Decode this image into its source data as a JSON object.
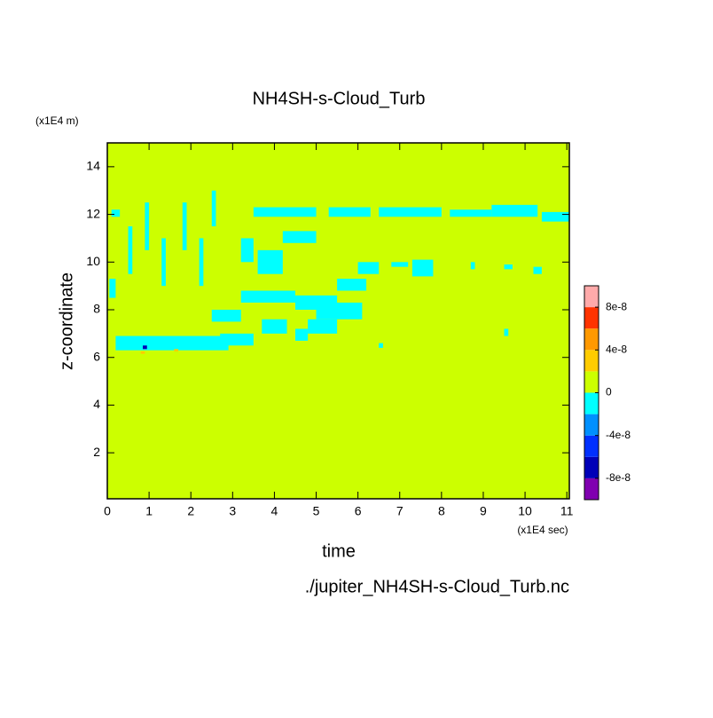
{
  "chart_data": {
    "type": "contour",
    "title": "NH4SH-s-Cloud_Turb",
    "x_label": "time",
    "x_unit": "(x1E4 sec)",
    "y_label": "z-coordinate",
    "y_unit": "(x1E4 m)",
    "source": "./jupiter_NH4SH-s-Cloud_Turb.nc",
    "xlim": [
      0,
      11.06
    ],
    "ylim": [
      0.07,
      15
    ],
    "xticks": [
      0,
      1,
      2,
      3,
      4,
      5,
      6,
      7,
      8,
      9,
      10,
      11
    ],
    "yticks": [
      2,
      4,
      6,
      8,
      10,
      12,
      14
    ],
    "levels": [
      -1e-07,
      -8e-08,
      -6e-08,
      -4e-08,
      -2e-08,
      0,
      2e-08,
      4e-08,
      6e-08,
      8e-08,
      1e-07
    ],
    "colors": [
      "#8000b0",
      "#0000b8",
      "#0030ff",
      "#0090ff",
      "#00ffff",
      "#ccff00",
      "#ffcc00",
      "#ff9900",
      "#ff3300",
      "#ffaaaa"
    ],
    "colorbar_ticks": [
      -8e-08,
      -4e-08,
      0,
      4e-08,
      8e-08
    ],
    "background_value": 1e-09,
    "regions": [
      {
        "x": [
          0.2,
          2.9
        ],
        "y": [
          6.3,
          6.9
        ],
        "value": -1e-08
      },
      {
        "x": [
          2.7,
          3.5
        ],
        "y": [
          6.5,
          7.0
        ],
        "value": -1e-08
      },
      {
        "x": [
          0.1,
          0.3
        ],
        "y": [
          11.9,
          12.2
        ],
        "value": -1e-08
      },
      {
        "x": [
          3.5,
          5.0
        ],
        "y": [
          11.9,
          12.3
        ],
        "value": -1e-08
      },
      {
        "x": [
          5.3,
          6.3
        ],
        "y": [
          11.9,
          12.3
        ],
        "value": -1e-08
      },
      {
        "x": [
          6.5,
          8.0
        ],
        "y": [
          11.9,
          12.3
        ],
        "value": -1e-08
      },
      {
        "x": [
          8.2,
          9.2
        ],
        "y": [
          11.9,
          12.2
        ],
        "value": -1e-08
      },
      {
        "x": [
          9.2,
          10.3
        ],
        "y": [
          11.9,
          12.4
        ],
        "value": -1e-08
      },
      {
        "x": [
          10.4,
          11.06
        ],
        "y": [
          11.7,
          12.1
        ],
        "value": -1e-08
      },
      {
        "x": [
          0.5,
          0.6
        ],
        "y": [
          9.5,
          11.5
        ],
        "value": -1e-08
      },
      {
        "x": [
          0.9,
          1.0
        ],
        "y": [
          10.5,
          12.5
        ],
        "value": -1e-08
      },
      {
        "x": [
          1.3,
          1.4
        ],
        "y": [
          9.0,
          11.0
        ],
        "value": -1e-08
      },
      {
        "x": [
          1.8,
          1.9
        ],
        "y": [
          10.5,
          12.5
        ],
        "value": -1e-08
      },
      {
        "x": [
          2.2,
          2.3
        ],
        "y": [
          9.0,
          11.0
        ],
        "value": -1e-08
      },
      {
        "x": [
          2.5,
          2.6
        ],
        "y": [
          11.5,
          13.0
        ],
        "value": -1e-08
      },
      {
        "x": [
          0.05,
          0.2
        ],
        "y": [
          8.5,
          9.3
        ],
        "value": -1e-08
      },
      {
        "x": [
          3.2,
          3.5
        ],
        "y": [
          10.0,
          11.0
        ],
        "value": -1e-08
      },
      {
        "x": [
          3.6,
          4.2
        ],
        "y": [
          9.5,
          10.5
        ],
        "value": -1e-08
      },
      {
        "x": [
          4.2,
          5.0
        ],
        "y": [
          10.8,
          11.3
        ],
        "value": -1e-08
      },
      {
        "x": [
          3.2,
          4.5
        ],
        "y": [
          8.3,
          8.8
        ],
        "value": -1e-08
      },
      {
        "x": [
          4.5,
          5.5
        ],
        "y": [
          8.0,
          8.6
        ],
        "value": -1e-08
      },
      {
        "x": [
          5.0,
          6.1
        ],
        "y": [
          7.6,
          8.3
        ],
        "value": -1e-08
      },
      {
        "x": [
          5.5,
          6.2
        ],
        "y": [
          8.8,
          9.3
        ],
        "value": -1e-08
      },
      {
        "x": [
          6.0,
          6.5
        ],
        "y": [
          9.5,
          10.0
        ],
        "value": -1e-08
      },
      {
        "x": [
          3.7,
          4.3
        ],
        "y": [
          7.0,
          7.6
        ],
        "value": -1e-08
      },
      {
        "x": [
          2.5,
          3.2
        ],
        "y": [
          7.5,
          8.0
        ],
        "value": -1e-08
      },
      {
        "x": [
          4.8,
          5.5
        ],
        "y": [
          7.0,
          7.6
        ],
        "value": -1e-08
      },
      {
        "x": [
          4.5,
          4.8
        ],
        "y": [
          6.7,
          7.2
        ],
        "value": -1e-08
      },
      {
        "x": [
          6.8,
          7.2
        ],
        "y": [
          9.8,
          10.0
        ],
        "value": -1e-08
      },
      {
        "x": [
          7.3,
          7.8
        ],
        "y": [
          9.4,
          10.1
        ],
        "value": -1e-08
      },
      {
        "x": [
          8.7,
          8.8
        ],
        "y": [
          9.7,
          10.0
        ],
        "value": -1e-08
      },
      {
        "x": [
          9.5,
          9.7
        ],
        "y": [
          9.7,
          9.9
        ],
        "value": -1e-08
      },
      {
        "x": [
          10.2,
          10.4
        ],
        "y": [
          9.5,
          9.8
        ],
        "value": -1e-08
      },
      {
        "x": [
          9.5,
          9.6
        ],
        "y": [
          6.9,
          7.2
        ],
        "value": -1e-08
      },
      {
        "x": [
          6.5,
          6.6
        ],
        "y": [
          6.4,
          6.6
        ],
        "value": -1e-08
      },
      {
        "x": [
          0.85,
          0.95
        ],
        "y": [
          6.35,
          6.5
        ],
        "value": -7e-08
      },
      {
        "x": [
          0.8,
          0.9
        ],
        "y": [
          6.15,
          6.25
        ],
        "value": 3e-08
      },
      {
        "x": [
          1.6,
          1.7
        ],
        "y": [
          6.25,
          6.35
        ],
        "value": 3e-08
      }
    ]
  }
}
